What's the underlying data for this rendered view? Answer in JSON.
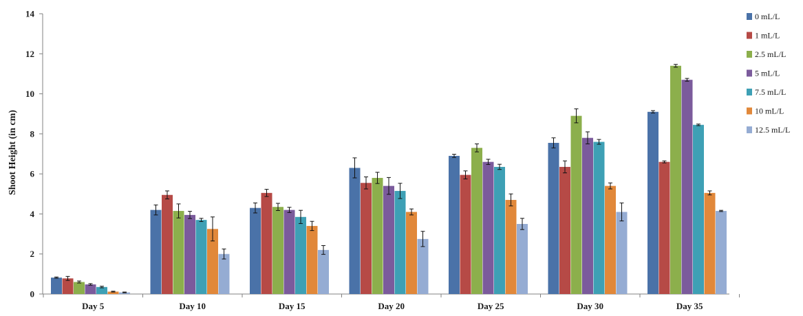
{
  "chart_data": {
    "type": "bar",
    "ylabel": "Shoot Height (in cm)",
    "xlabel": "",
    "ylim": [
      0,
      14
    ],
    "yticks": [
      0,
      2,
      4,
      6,
      8,
      10,
      12,
      14
    ],
    "grid": false,
    "legend_position": "right",
    "categories": [
      "Day 5",
      "Day 10",
      "Day 15",
      "Day 20",
      "Day 25",
      "Day 30",
      "Day 35"
    ],
    "series": [
      {
        "name": "0 mL/L",
        "color": "#4a72a8",
        "values": [
          0.82,
          4.2,
          4.3,
          6.3,
          6.9,
          7.55,
          9.1
        ],
        "errors": [
          0.03,
          0.25,
          0.25,
          0.5,
          0.08,
          0.25,
          0.06
        ]
      },
      {
        "name": "1 mL/L",
        "color": "#b64a46",
        "values": [
          0.78,
          4.95,
          5.05,
          5.55,
          5.95,
          6.35,
          6.6
        ],
        "errors": [
          0.1,
          0.2,
          0.18,
          0.3,
          0.2,
          0.3,
          0.05
        ]
      },
      {
        "name": "2.5 mL/L",
        "color": "#8caf4c",
        "values": [
          0.6,
          4.15,
          4.35,
          5.8,
          7.3,
          8.9,
          11.4
        ],
        "errors": [
          0.05,
          0.35,
          0.18,
          0.28,
          0.2,
          0.35,
          0.07
        ]
      },
      {
        "name": "5 mL/L",
        "color": "#7b5b9c",
        "values": [
          0.48,
          3.95,
          4.2,
          5.4,
          6.6,
          7.8,
          10.7
        ],
        "errors": [
          0.04,
          0.18,
          0.13,
          0.42,
          0.13,
          0.3,
          0.07
        ]
      },
      {
        "name": "7.5 mL/L",
        "color": "#3ea0b5",
        "values": [
          0.35,
          3.7,
          3.85,
          5.15,
          6.35,
          7.6,
          8.45
        ],
        "errors": [
          0.04,
          0.08,
          0.33,
          0.38,
          0.13,
          0.12,
          0.04
        ]
      },
      {
        "name": "10 mL/L",
        "color": "#e1883a",
        "values": [
          0.12,
          3.25,
          3.4,
          4.1,
          4.7,
          5.4,
          5.05
        ],
        "errors": [
          0.02,
          0.6,
          0.23,
          0.15,
          0.3,
          0.15,
          0.1
        ]
      },
      {
        "name": "12.5 mL/L",
        "color": "#95acd3",
        "values": [
          0.08,
          2.0,
          2.2,
          2.75,
          3.5,
          4.1,
          4.15
        ],
        "errors": [
          0.02,
          0.25,
          0.22,
          0.38,
          0.28,
          0.45,
          0.03
        ]
      }
    ]
  }
}
